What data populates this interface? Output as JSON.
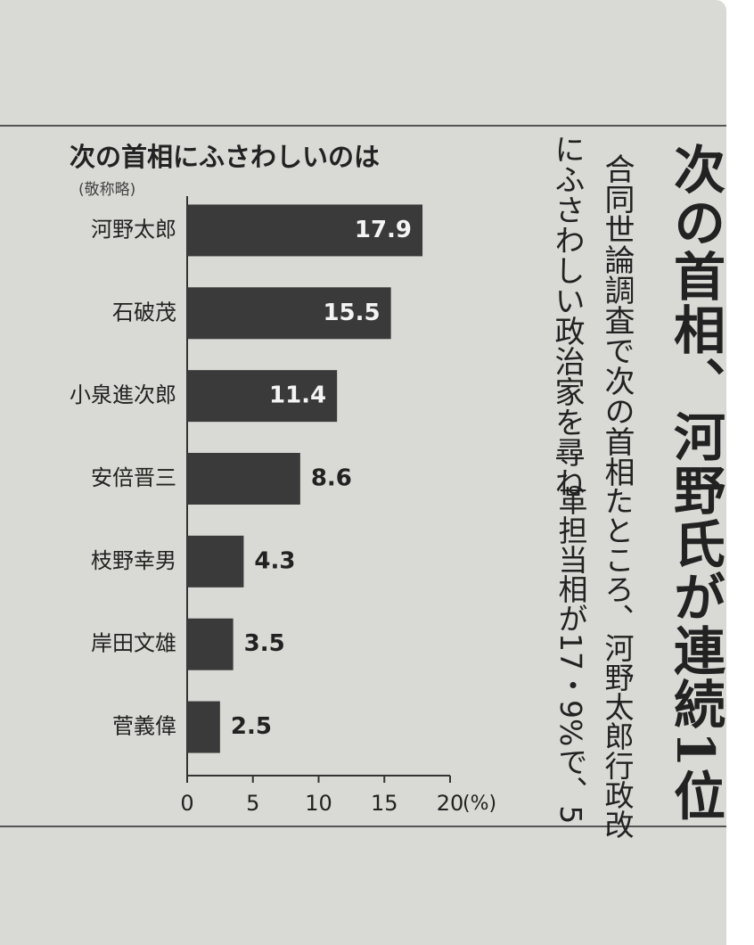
{
  "chart_data": {
    "type": "bar",
    "orientation": "horizontal",
    "title": "次の首相にふさわしいのは",
    "subtitle": "(敬称略)",
    "categories": [
      "河野太郎",
      "石破茂",
      "小泉進次郎",
      "安倍晋三",
      "枝野幸男",
      "岸田文雄",
      "菅義偉"
    ],
    "values": [
      17.9,
      15.5,
      11.4,
      8.6,
      4.3,
      3.5,
      2.5
    ],
    "color": "#3a3a3a",
    "xlim": [
      0,
      20
    ],
    "xticks": [
      0,
      5,
      10,
      15,
      20
    ],
    "x_unit": "(%)",
    "grid": false
  },
  "article": {
    "headline": "次の首相、河野氏が連続1位",
    "lead": [
      "合同世論調査で次の首相",
      "にふさわしい政治家を尋ね"
    ],
    "body": [
      "たところ、河野太郎行政改",
      "革担当相が17・9%で、5"
    ]
  }
}
